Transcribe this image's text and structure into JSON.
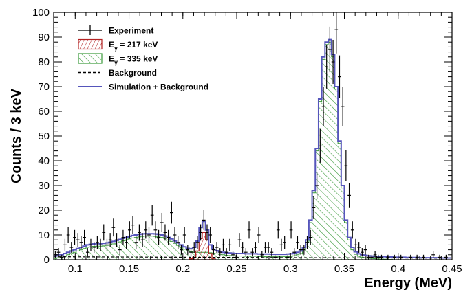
{
  "chart_data": {
    "type": "histogram",
    "xlabel": "Energy (MeV)",
    "ylabel": "Counts / 3 keV",
    "xlim": [
      0.08,
      0.45
    ],
    "ylim": [
      0,
      100
    ],
    "x_ticks": [
      0.1,
      0.15,
      0.2,
      0.25,
      0.3,
      0.35,
      0.4,
      0.45
    ],
    "x_tick_labels": [
      "0.1",
      "0.15",
      "0.2",
      "0.25",
      "0.3",
      "0.35",
      "0.4",
      "0.45"
    ],
    "y_ticks": [
      0,
      10,
      20,
      30,
      40,
      50,
      60,
      70,
      80,
      90,
      100
    ],
    "y_tick_labels": [
      "0",
      "10",
      "20",
      "30",
      "40",
      "50",
      "60",
      "70",
      "80",
      "90",
      "100"
    ],
    "legend": {
      "placement": "top-left",
      "entries": [
        {
          "key": "experiment",
          "label": "Experiment",
          "style": "errorbar"
        },
        {
          "key": "e217",
          "label_prefix": "E",
          "label_sub": "γ",
          "label_suffix": " = 217 keV",
          "style": "hatch-red"
        },
        {
          "key": "e335",
          "label_prefix": "E",
          "label_sub": "γ",
          "label_suffix": " = 335 keV",
          "style": "hatch-green"
        },
        {
          "key": "background",
          "label": "Background",
          "style": "dashed"
        },
        {
          "key": "sim",
          "label": "Simulation + Background",
          "style": "line-blue"
        }
      ]
    },
    "colors": {
      "experiment": "#000000",
      "e217": "#b22222",
      "e335": "#3a9a3a",
      "background": "#000000",
      "sim": "#5555bb"
    },
    "bin_width": 0.003,
    "simulation_plus_background": {
      "x": [
        0.08,
        0.083,
        0.086,
        0.089,
        0.092,
        0.095,
        0.098,
        0.101,
        0.104,
        0.107,
        0.11,
        0.113,
        0.116,
        0.119,
        0.122,
        0.125,
        0.128,
        0.131,
        0.134,
        0.137,
        0.14,
        0.143,
        0.146,
        0.149,
        0.152,
        0.155,
        0.158,
        0.161,
        0.164,
        0.167,
        0.17,
        0.173,
        0.176,
        0.179,
        0.182,
        0.185,
        0.188,
        0.191,
        0.194,
        0.197,
        0.2,
        0.203,
        0.206,
        0.209,
        0.212,
        0.215,
        0.218,
        0.221,
        0.224,
        0.227,
        0.23,
        0.233,
        0.236,
        0.239,
        0.242,
        0.245,
        0.248,
        0.251,
        0.254,
        0.257,
        0.26,
        0.263,
        0.266,
        0.269,
        0.272,
        0.275,
        0.278,
        0.281,
        0.284,
        0.287,
        0.29,
        0.293,
        0.296,
        0.299,
        0.302,
        0.305,
        0.308,
        0.311,
        0.314,
        0.317,
        0.32,
        0.323,
        0.326,
        0.329,
        0.332,
        0.335,
        0.338,
        0.341,
        0.344,
        0.347,
        0.35,
        0.353,
        0.356,
        0.359,
        0.362,
        0.365,
        0.368,
        0.371,
        0.374,
        0.377,
        0.38,
        0.383,
        0.386,
        0.389,
        0.392,
        0.395,
        0.398,
        0.401,
        0.404,
        0.407,
        0.41,
        0.413,
        0.416,
        0.419,
        0.422,
        0.425,
        0.428,
        0.431,
        0.434,
        0.437,
        0.44,
        0.443,
        0.446
      ],
      "y": [
        1.5,
        2,
        2,
        2.5,
        3,
        3.5,
        4,
        4.5,
        5,
        5.5,
        6,
        6.2,
        6.4,
        6.5,
        6.5,
        6.6,
        6.8,
        7,
        7.4,
        7.8,
        8.2,
        8.6,
        9,
        9.4,
        9.8,
        10,
        10.2,
        10.4,
        10.5,
        10.5,
        10.5,
        10.4,
        10.2,
        10,
        9.6,
        9,
        8.4,
        7.6,
        6.8,
        6,
        5.2,
        4.6,
        4.4,
        5,
        7.5,
        13,
        15.5,
        12,
        6,
        4.2,
        3.6,
        3.2,
        3,
        2.8,
        2.7,
        2.6,
        2.5,
        2.5,
        2.5,
        2.4,
        2.4,
        2.4,
        2.4,
        2.3,
        2.3,
        2.3,
        2.3,
        2.2,
        2.2,
        2.2,
        2.2,
        2.2,
        2.3,
        2.4,
        2.6,
        3,
        3.5,
        5,
        8,
        16,
        28,
        45,
        65,
        82,
        88,
        89,
        83,
        70,
        48,
        30,
        16,
        9,
        5,
        3.2,
        2.4,
        2,
        1.8,
        1.6,
        1.5,
        1.4,
        1.3,
        1.2,
        1.2,
        1.1,
        1.1,
        1,
        1,
        1,
        1,
        0.9,
        0.9,
        0.9,
        0.9,
        0.8,
        0.8,
        0.8,
        0.8,
        0.8,
        0.8,
        0.8,
        0.7,
        0.7,
        0.7
      ]
    },
    "e335_component": {
      "x": [
        0.08,
        0.083,
        0.086,
        0.089,
        0.092,
        0.095,
        0.098,
        0.101,
        0.104,
        0.107,
        0.11,
        0.113,
        0.116,
        0.119,
        0.122,
        0.125,
        0.128,
        0.131,
        0.134,
        0.137,
        0.14,
        0.143,
        0.146,
        0.149,
        0.152,
        0.155,
        0.158,
        0.161,
        0.164,
        0.167,
        0.17,
        0.173,
        0.176,
        0.179,
        0.182,
        0.185,
        0.188,
        0.191,
        0.194,
        0.197,
        0.2,
        0.203,
        0.206,
        0.209,
        0.212,
        0.215,
        0.218,
        0.221,
        0.224,
        0.227,
        0.23,
        0.233,
        0.236,
        0.239,
        0.242,
        0.245,
        0.248,
        0.251,
        0.254,
        0.257,
        0.26,
        0.263,
        0.266,
        0.269,
        0.272,
        0.275,
        0.278,
        0.281,
        0.284,
        0.287,
        0.29,
        0.293,
        0.296,
        0.299,
        0.302,
        0.305,
        0.308,
        0.311,
        0.314,
        0.317,
        0.32,
        0.323,
        0.326,
        0.329,
        0.332,
        0.335,
        0.338,
        0.341,
        0.344,
        0.347,
        0.35,
        0.353,
        0.356,
        0.359,
        0.362,
        0.365,
        0.368,
        0.371,
        0.374,
        0.377,
        0.38,
        0.383,
        0.386,
        0.389,
        0.392,
        0.395,
        0.398,
        0.401,
        0.404,
        0.407,
        0.41,
        0.413,
        0.416,
        0.419,
        0.422,
        0.425,
        0.428,
        0.431,
        0.434,
        0.437,
        0.44,
        0.443,
        0.446
      ],
      "y": [
        0.5,
        0.8,
        1,
        1.5,
        2,
        2.5,
        3,
        3.5,
        4,
        4.5,
        5,
        5.2,
        5.4,
        5.5,
        5.5,
        5.6,
        5.8,
        6,
        6.4,
        6.8,
        7.2,
        7.6,
        8,
        8.4,
        8.8,
        9,
        9.2,
        9.4,
        9.5,
        9.5,
        9.5,
        9.4,
        9.2,
        9,
        8.6,
        8,
        7.4,
        6.6,
        5.8,
        5,
        4.2,
        3.6,
        3.2,
        3,
        3,
        3,
        3,
        3,
        2.8,
        2.6,
        2.4,
        2.2,
        2,
        1.8,
        1.7,
        1.6,
        1.5,
        1.5,
        1.5,
        1.4,
        1.4,
        1.4,
        1.4,
        1.3,
        1.3,
        1.3,
        1.3,
        1.2,
        1.2,
        1.2,
        1.2,
        1.2,
        1.3,
        1.4,
        1.6,
        2,
        2.5,
        4,
        7,
        15,
        27,
        44,
        64,
        81,
        87,
        88,
        82,
        69,
        47,
        29,
        15,
        8,
        4,
        2.2,
        1.4,
        1,
        0.8,
        0.6,
        0.5,
        0.4,
        0.3,
        0.2,
        0.2,
        0.1,
        0.1,
        0,
        0,
        0,
        0,
        0,
        0,
        0,
        0,
        0,
        0,
        0,
        0,
        0,
        0,
        0,
        0,
        0,
        0
      ]
    },
    "e217_component": {
      "x": [
        0.206,
        0.209,
        0.212,
        0.215,
        0.218,
        0.221,
        0.224,
        0.227
      ],
      "y": [
        0.4,
        1,
        3.5,
        8.5,
        11,
        8,
        2.5,
        0.5
      ]
    },
    "background_level": {
      "x": [
        0.08,
        0.45
      ],
      "y": [
        1.2,
        0.6
      ]
    },
    "experiment": {
      "x": [
        0.0815,
        0.0845,
        0.0875,
        0.0905,
        0.0935,
        0.0965,
        0.0995,
        0.1025,
        0.1055,
        0.1085,
        0.1115,
        0.1145,
        0.1175,
        0.1205,
        0.1235,
        0.1265,
        0.1295,
        0.1325,
        0.1355,
        0.1385,
        0.1415,
        0.1445,
        0.1475,
        0.1505,
        0.1535,
        0.1565,
        0.1595,
        0.1625,
        0.1655,
        0.1685,
        0.1715,
        0.1745,
        0.1775,
        0.1805,
        0.1835,
        0.1865,
        0.1895,
        0.1925,
        0.1955,
        0.1985,
        0.2015,
        0.2045,
        0.2075,
        0.2105,
        0.2135,
        0.2165,
        0.2195,
        0.2225,
        0.2255,
        0.2285,
        0.2315,
        0.2345,
        0.2375,
        0.2405,
        0.2435,
        0.2465,
        0.2495,
        0.2525,
        0.2555,
        0.2585,
        0.2615,
        0.2645,
        0.2675,
        0.2705,
        0.2735,
        0.2765,
        0.2795,
        0.2825,
        0.2855,
        0.2885,
        0.2915,
        0.2945,
        0.2975,
        0.3005,
        0.3035,
        0.3065,
        0.3095,
        0.3125,
        0.3155,
        0.3185,
        0.3215,
        0.3245,
        0.3275,
        0.3305,
        0.3335,
        0.3365,
        0.3395,
        0.3425,
        0.3455,
        0.3485,
        0.3515,
        0.3545,
        0.3575,
        0.3605,
        0.3635,
        0.3665,
        0.3695,
        0.3725,
        0.3755,
        0.3785,
        0.3815,
        0.3845,
        0.3875,
        0.3905,
        0.3935,
        0.3965,
        0.3995,
        0.4025,
        0.4055,
        0.4085,
        0.4115,
        0.4145,
        0.4175,
        0.4205,
        0.4235,
        0.4265,
        0.4295,
        0.4325,
        0.4355,
        0.4385,
        0.4415,
        0.4445
      ],
      "y": [
        2,
        3,
        1,
        6,
        10,
        5,
        9,
        8,
        7,
        9,
        3,
        6,
        5,
        7,
        6,
        11,
        6,
        8,
        13,
        8,
        4,
        9,
        7,
        12,
        14,
        7,
        11,
        8,
        12,
        10,
        18,
        12,
        9,
        15,
        11,
        9,
        19,
        10,
        7,
        4,
        10,
        4,
        3,
        5,
        7,
        11,
        16,
        11,
        10,
        4,
        5,
        3,
        6,
        3,
        6,
        2,
        1,
        8,
        5,
        3,
        12,
        3,
        5,
        10,
        2,
        5,
        5,
        3,
        1,
        12,
        6,
        7,
        1,
        12,
        3,
        7,
        4,
        4,
        7,
        9,
        21,
        30,
        46,
        62,
        78,
        85,
        80,
        93,
        74,
        62,
        38,
        26,
        12,
        6,
        5,
        3,
        4,
        1,
        1,
        2,
        1,
        1,
        0,
        1,
        0,
        1,
        0,
        1,
        0,
        0,
        1,
        0,
        1,
        0,
        1,
        0,
        0,
        2,
        0,
        1,
        0,
        1
      ],
      "err": [
        1.4,
        1.7,
        1,
        2.4,
        3.2,
        2.2,
        3,
        2.8,
        2.6,
        3,
        1.7,
        2.4,
        2.2,
        2.6,
        2.4,
        3.3,
        2.4,
        2.8,
        3.6,
        2.8,
        2,
        3,
        2.6,
        3.5,
        3.7,
        2.6,
        3.3,
        2.8,
        3.5,
        3.2,
        4.2,
        3.5,
        3,
        3.9,
        3.3,
        3,
        4.4,
        3.2,
        2.6,
        2,
        3.2,
        2,
        1.7,
        2.2,
        2.6,
        3.3,
        4,
        3.3,
        3.2,
        2,
        2.2,
        1.7,
        2.4,
        1.7,
        2.4,
        1.4,
        1,
        2.8,
        2.2,
        1.7,
        3.5,
        1.7,
        2.2,
        3.2,
        1.4,
        2.2,
        2.2,
        1.7,
        1,
        3.5,
        2.4,
        2.6,
        1,
        3.5,
        1.7,
        2.6,
        2,
        2,
        2.6,
        3,
        4.6,
        5.5,
        6.8,
        7.9,
        8.8,
        9.2,
        8.9,
        9.6,
        8.6,
        7.9,
        6.2,
        5.1,
        3.5,
        2.4,
        2.2,
        1.7,
        2,
        1,
        1,
        1.4,
        1,
        1,
        0,
        1,
        0,
        1,
        0,
        1,
        0,
        0,
        1,
        0,
        1,
        0,
        1,
        0,
        0,
        1.4,
        0,
        1,
        0,
        1
      ]
    }
  }
}
